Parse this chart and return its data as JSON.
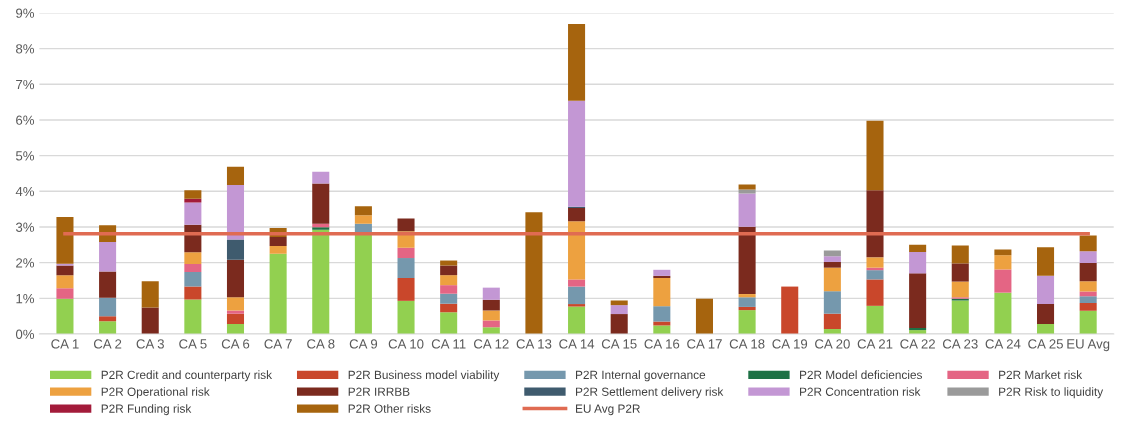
{
  "chart_data": {
    "type": "bar",
    "stacked": true,
    "grid": "y",
    "legend": "bottom",
    "categories": [
      "CA 1",
      "CA 2",
      "CA 3",
      "CA 5",
      "CA 6",
      "CA 7",
      "CA 8",
      "CA 9",
      "CA 10",
      "CA 11",
      "CA 12",
      "CA 13",
      "CA 14",
      "CA 15",
      "CA 16",
      "CA 17",
      "CA 18",
      "CA 19",
      "CA 20",
      "CA 21",
      "CA 22",
      "CA 23",
      "CA 24",
      "CA 25",
      "EU Avg"
    ],
    "ylim": [
      0,
      9
    ],
    "yticks": [
      {
        "value": 0,
        "label": "0%"
      },
      {
        "value": 1,
        "label": "1%"
      },
      {
        "value": 2,
        "label": "2%"
      },
      {
        "value": 3,
        "label": "3%"
      },
      {
        "value": 4,
        "label": "4%"
      },
      {
        "value": 5,
        "label": "5%"
      },
      {
        "value": 6,
        "label": "6%"
      },
      {
        "value": 7,
        "label": "7%"
      },
      {
        "value": 8,
        "label": "8%"
      },
      {
        "value": 9,
        "label": "9%"
      }
    ],
    "series": [
      {
        "name": "P2R Credit and counterparty risk",
        "color": "#92d050",
        "values": [
          0.99,
          0.36,
          0,
          0.97,
          0.28,
          2.25,
          2.92,
          2.82,
          0.93,
          0.61,
          0.19,
          0,
          0.77,
          0,
          0.24,
          0,
          0.67,
          0,
          0.14,
          0.79,
          0.11,
          0.94,
          1.16,
          0.28,
          0.65
        ]
      },
      {
        "name": "P2R Business model viability",
        "color": "#c9472b",
        "values": [
          0,
          0.14,
          0,
          0.36,
          0.29,
          0,
          0,
          0,
          0.64,
          0.24,
          0,
          0,
          0.07,
          0,
          0.11,
          0,
          0.09,
          1.33,
          0.43,
          0.74,
          0,
          0,
          0,
          0,
          0.22
        ]
      },
      {
        "name": "P2R Internal governance",
        "color": "#7598ad",
        "values": [
          0,
          0.52,
          0,
          0.41,
          0,
          0,
          0,
          0.27,
          0.56,
          0.28,
          0,
          0,
          0.49,
          0,
          0.43,
          0,
          0.27,
          0,
          0.63,
          0.26,
          0,
          0,
          0,
          0,
          0.19
        ]
      },
      {
        "name": "P2R Model deficiencies",
        "color": "#1e7145",
        "values": [
          0,
          0,
          0,
          0,
          0,
          0,
          0.07,
          0,
          0,
          0,
          0,
          0,
          0,
          0,
          0,
          0,
          0,
          0,
          0,
          0,
          0.06,
          0.05,
          0,
          0,
          0
        ]
      },
      {
        "name": "P2R Market risk",
        "color": "#e46584",
        "values": [
          0.29,
          0,
          0,
          0.22,
          0.09,
          0,
          0.1,
          0,
          0.29,
          0.24,
          0.19,
          0,
          0.2,
          0,
          0,
          0,
          0,
          0,
          0,
          0.07,
          0,
          0.04,
          0.65,
          0,
          0.13
        ]
      },
      {
        "name": "P2R Operational risk",
        "color": "#eda140",
        "values": [
          0.37,
          0,
          0,
          0.33,
          0.37,
          0.22,
          0,
          0.24,
          0.46,
          0.28,
          0.28,
          0,
          1.63,
          0,
          0.79,
          0,
          0.09,
          0,
          0.66,
          0.29,
          0,
          0.44,
          0.4,
          0,
          0.29
        ]
      },
      {
        "name": "P2R IRRBB",
        "color": "#7b2a1e",
        "values": [
          0.27,
          0.73,
          0.74,
          0.77,
          1.05,
          0.25,
          1.13,
          0,
          0.36,
          0.27,
          0.3,
          0,
          0.37,
          0.56,
          0.06,
          0,
          1.89,
          0,
          0.16,
          1.88,
          1.53,
          0.51,
          0,
          0.56,
          0.51
        ]
      },
      {
        "name": "P2R Settlement delivery risk",
        "color": "#3f5b6e",
        "values": [
          0,
          0,
          0,
          0,
          0.57,
          0,
          0,
          0,
          0,
          0,
          0,
          0,
          0.04,
          0,
          0,
          0,
          0,
          0,
          0,
          0,
          0,
          0,
          0,
          0,
          0
        ]
      },
      {
        "name": "P2R Concentration risk",
        "color": "#c397d4",
        "values": [
          0.05,
          0.83,
          0,
          0.63,
          1.53,
          0,
          0.33,
          0,
          0,
          0,
          0.34,
          0,
          2.97,
          0.25,
          0.17,
          0,
          0.93,
          0,
          0.16,
          0,
          0.6,
          0,
          0,
          0.79,
          0.33
        ]
      },
      {
        "name": "P2R Risk to liquidity",
        "color": "#9a9a9a",
        "values": [
          0,
          0,
          0,
          0,
          0,
          0,
          0,
          0,
          0,
          0,
          0,
          0,
          0,
          0,
          0,
          0,
          0.11,
          0,
          0.16,
          0,
          0,
          0,
          0,
          0,
          0
        ]
      },
      {
        "name": "P2R Funding risk",
        "color": "#a31b3a",
        "values": [
          0,
          0,
          0,
          0.1,
          0,
          0,
          0,
          0,
          0,
          0,
          0,
          0,
          0,
          0,
          0,
          0,
          0,
          0,
          0,
          0,
          0,
          0,
          0,
          0,
          0
        ]
      },
      {
        "name": "P2R Other risks",
        "color": "#a6640e",
        "values": [
          1.31,
          0.47,
          0.74,
          0.24,
          0.51,
          0.25,
          0,
          0.25,
          0,
          0.14,
          0,
          3.41,
          2.15,
          0.13,
          0,
          0.99,
          0.14,
          0,
          0,
          1.95,
          0.2,
          0.5,
          0.16,
          0.8,
          0.44
        ]
      },
      {
        "name": "EU Avg P2R",
        "type": "line",
        "color": "#e06b52",
        "values": [
          2.81,
          2.81,
          2.81,
          2.81,
          2.81,
          2.81,
          2.81,
          2.81,
          2.81,
          2.81,
          2.81,
          2.81,
          2.81,
          2.81,
          2.81,
          2.81,
          2.81,
          2.81,
          2.81,
          2.81,
          2.81,
          2.81,
          2.81,
          2.81,
          2.81
        ]
      }
    ]
  }
}
